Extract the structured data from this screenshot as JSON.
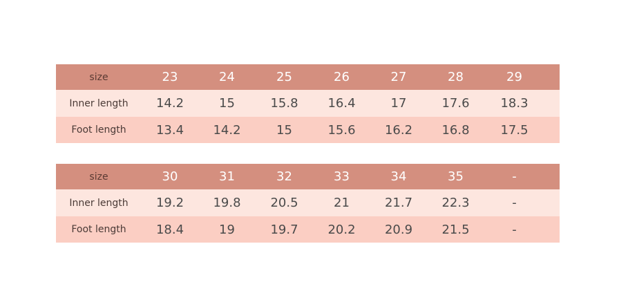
{
  "tables": [
    {
      "header": [
        "size",
        23,
        24,
        25,
        26,
        27,
        28,
        29
      ],
      "rows": [
        [
          "Inner length",
          14.2,
          15,
          15.8,
          16.4,
          17,
          17.6,
          18.3
        ],
        [
          "Foot length",
          13.4,
          14.2,
          15,
          15.6,
          16.2,
          16.8,
          17.5
        ]
      ]
    },
    {
      "header": [
        "size",
        30,
        31,
        32,
        33,
        34,
        35,
        "-"
      ],
      "rows": [
        [
          "Inner length",
          19.2,
          19.8,
          20.5,
          21,
          21.7,
          22.3,
          "-"
        ],
        [
          "Foot length",
          18.4,
          19,
          19.7,
          20.2,
          20.9,
          21.5,
          "-"
        ]
      ]
    }
  ]
}
